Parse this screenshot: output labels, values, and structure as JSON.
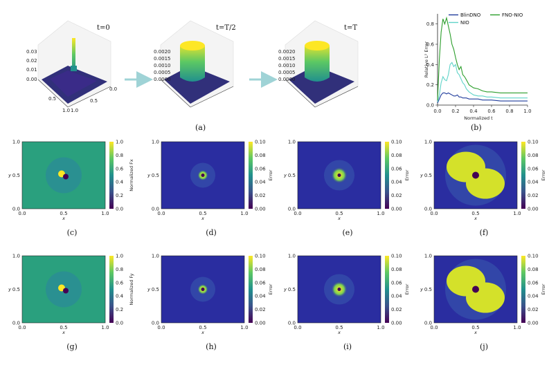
{
  "figure": {
    "row1": {
      "surfaces": [
        {
          "label": "t=0",
          "zticks": [
            "0.03",
            "0.02",
            "0.01",
            "0.00"
          ]
        },
        {
          "label": "t=T/2",
          "zticks": [
            "0.0020",
            "0.0015",
            "0.0010",
            "0.0005",
            "0.0000"
          ]
        },
        {
          "label": "t=T",
          "zticks": [
            "0.0020",
            "0.0015",
            "0.0010",
            "0.0005",
            "0.0000"
          ]
        }
      ],
      "surface_ticks": {
        "right": [
          "0.0",
          "0.5",
          "1.0"
        ],
        "left": [
          "0.5",
          "1.0"
        ]
      },
      "caption_a": "(a)",
      "caption_b": "(b)"
    },
    "row2": {
      "captions": [
        "(c)",
        "(d)",
        "(e)",
        "(f)"
      ],
      "colorbar_labels": [
        "Normalized Fx",
        "Error",
        "Error",
        "Error"
      ]
    },
    "row3": {
      "captions": [
        "(g)",
        "(h)",
        "(i)",
        "(j)"
      ],
      "colorbar_labels": [
        "Normalized Fy",
        "Error",
        "Error",
        "Error"
      ]
    },
    "heatmap_axes": {
      "xticks": [
        "0.0",
        "0.5",
        "1.0"
      ],
      "yticks": [
        "1.0",
        "0.5",
        "0.0"
      ],
      "xlabel": "x",
      "ylabel": "y"
    },
    "colorbar_ticks": {
      "field": [
        "1.0",
        "0.8",
        "0.6",
        "0.4",
        "0.2",
        "0.0"
      ],
      "error": [
        "0.10",
        "0.08",
        "0.06",
        "0.04",
        "0.02",
        "0.00"
      ]
    },
    "colors": {
      "viridis_dark": "#440154",
      "viridis_mid": "#21908d",
      "viridis_light": "#fde725",
      "arrow": "#9fd3d6"
    }
  },
  "chart_data": {
    "type": "line",
    "title": "",
    "xlabel": "Normalized t",
    "ylabel": "Relative L² Error",
    "xlim": [
      0.0,
      1.0
    ],
    "ylim": [
      0.0,
      0.9
    ],
    "xticks": [
      "0.0",
      "0.2",
      "0.4",
      "0.6",
      "0.8",
      "1.0"
    ],
    "yticks": [
      "0.0",
      "0.2",
      "0.4",
      "0.6",
      "0.8"
    ],
    "x": [
      0.0,
      0.02,
      0.04,
      0.06,
      0.08,
      0.1,
      0.12,
      0.14,
      0.16,
      0.18,
      0.2,
      0.22,
      0.24,
      0.26,
      0.28,
      0.3,
      0.32,
      0.35,
      0.4,
      0.45,
      0.5,
      0.55,
      0.6,
      0.7,
      0.8,
      0.9,
      1.0
    ],
    "series": [
      {
        "name": "BlinDNO",
        "color": "#1f3b9b",
        "values": [
          0.02,
          0.06,
          0.1,
          0.12,
          0.12,
          0.11,
          0.12,
          0.11,
          0.1,
          0.09,
          0.09,
          0.1,
          0.08,
          0.08,
          0.07,
          0.07,
          0.07,
          0.06,
          0.06,
          0.06,
          0.05,
          0.05,
          0.05,
          0.04,
          0.04,
          0.04,
          0.04
        ]
      },
      {
        "name": "NIO",
        "color": "#5fd3c8",
        "values": [
          0.03,
          0.1,
          0.22,
          0.28,
          0.25,
          0.24,
          0.3,
          0.4,
          0.42,
          0.38,
          0.4,
          0.32,
          0.3,
          0.26,
          0.22,
          0.2,
          0.16,
          0.13,
          0.1,
          0.09,
          0.09,
          0.08,
          0.08,
          0.07,
          0.07,
          0.07,
          0.07
        ]
      },
      {
        "name": "FNO-NIO",
        "color": "#2a9d2a",
        "values": [
          0.05,
          0.45,
          0.72,
          0.85,
          0.8,
          0.86,
          0.78,
          0.7,
          0.6,
          0.55,
          0.47,
          0.4,
          0.35,
          0.38,
          0.3,
          0.28,
          0.25,
          0.2,
          0.17,
          0.16,
          0.14,
          0.13,
          0.13,
          0.12,
          0.12,
          0.12,
          0.12
        ]
      }
    ],
    "legend": "top-right"
  }
}
